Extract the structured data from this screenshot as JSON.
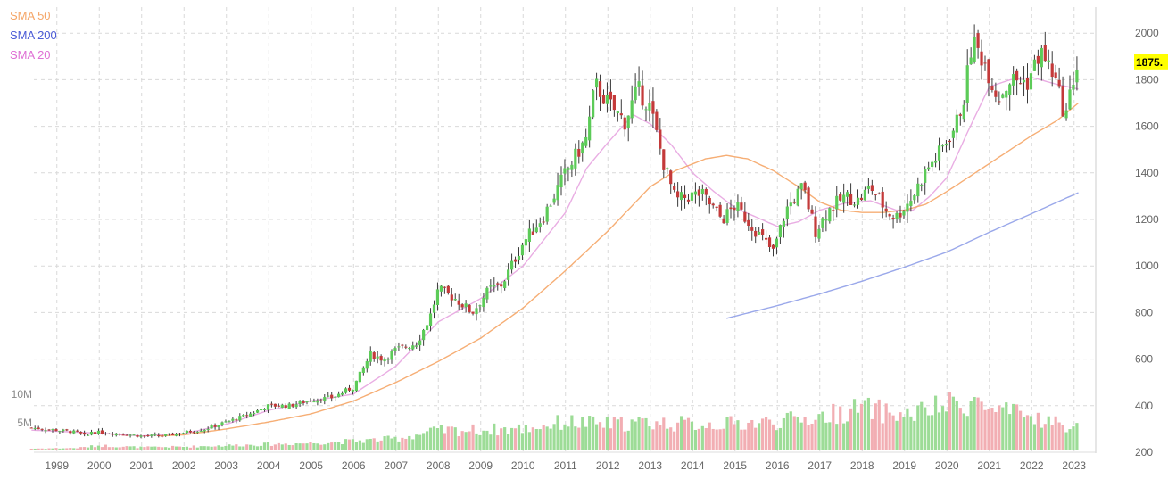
{
  "chart_data": {
    "type": "candlestick",
    "period": "monthly",
    "y_ticks": [
      200,
      400,
      600,
      800,
      1000,
      1200,
      1400,
      1600,
      1800,
      2000
    ],
    "x_ticks": [
      "1999",
      "2000",
      "2001",
      "2002",
      "2003",
      "2004",
      "2005",
      "2006",
      "2007",
      "2008",
      "2009",
      "2010",
      "2011",
      "2012",
      "2013",
      "2014",
      "2015",
      "2016",
      "2017",
      "2018",
      "2019",
      "2020",
      "2021",
      "2022",
      "2023"
    ],
    "volume_ticks": [
      "5M",
      "10M"
    ],
    "ylim": [
      200,
      2100
    ],
    "xlim_years": [
      1998.4,
      2023.2
    ],
    "grid": true,
    "legend_position": "top-left",
    "last_price_label": "1875.",
    "last_price_value": 1875,
    "colors": {
      "up": "#5ccb58",
      "down": "#c43a3a",
      "vol_up": "#9ddc97",
      "vol_down": "#f2aeb3",
      "sma50": "#f5a566",
      "sma200": "#8f9fe8",
      "sma20": "#e7a4e0",
      "last_label_bg": "#ffff00"
    },
    "close_anchors": [
      [
        1998.4,
        305
      ],
      [
        1999.0,
        295
      ],
      [
        1999.5,
        285
      ],
      [
        1999.7,
        265
      ],
      [
        1999.8,
        290
      ],
      [
        2000.0,
        285
      ],
      [
        2000.5,
        280
      ],
      [
        2001.0,
        270
      ],
      [
        2001.5,
        270
      ],
      [
        2002.0,
        285
      ],
      [
        2002.5,
        300
      ],
      [
        2003.0,
        330
      ],
      [
        2003.5,
        360
      ],
      [
        2004.0,
        400
      ],
      [
        2004.5,
        400
      ],
      [
        2005.0,
        425
      ],
      [
        2005.5,
        435
      ],
      [
        2006.0,
        480
      ],
      [
        2006.4,
        620
      ],
      [
        2006.7,
        600
      ],
      [
        2007.0,
        640
      ],
      [
        2007.5,
        670
      ],
      [
        2007.8,
        780
      ],
      [
        2008.0,
        900
      ],
      [
        2008.4,
        860
      ],
      [
        2008.8,
        800
      ],
      [
        2009.2,
        900
      ],
      [
        2009.5,
        920
      ],
      [
        2010.0,
        1100
      ],
      [
        2010.5,
        1220
      ],
      [
        2011.0,
        1400
      ],
      [
        2011.5,
        1550
      ],
      [
        2011.7,
        1780
      ],
      [
        2012.0,
        1700
      ],
      [
        2012.4,
        1620
      ],
      [
        2012.7,
        1760
      ],
      [
        2013.0,
        1680
      ],
      [
        2013.3,
        1450
      ],
      [
        2013.6,
        1280
      ],
      [
        2013.9,
        1300
      ],
      [
        2014.2,
        1310
      ],
      [
        2014.7,
        1200
      ],
      [
        2015.0,
        1260
      ],
      [
        2015.5,
        1150
      ],
      [
        2015.9,
        1060
      ],
      [
        2016.2,
        1240
      ],
      [
        2016.6,
        1340
      ],
      [
        2016.9,
        1150
      ],
      [
        2017.2,
        1240
      ],
      [
        2017.6,
        1300
      ],
      [
        2017.9,
        1280
      ],
      [
        2018.2,
        1340
      ],
      [
        2018.6,
        1230
      ],
      [
        2018.8,
        1210
      ],
      [
        2019.2,
        1300
      ],
      [
        2019.5,
        1410
      ],
      [
        2019.8,
        1480
      ],
      [
        2020.2,
        1600
      ],
      [
        2020.4,
        1720
      ],
      [
        2020.6,
        1970
      ],
      [
        2020.9,
        1870
      ],
      [
        2021.2,
        1720
      ],
      [
        2021.5,
        1800
      ],
      [
        2021.9,
        1790
      ],
      [
        2022.2,
        1920
      ],
      [
        2022.5,
        1830
      ],
      [
        2022.8,
        1640
      ],
      [
        2023.0,
        1820
      ],
      [
        2023.1,
        1875
      ]
    ],
    "volume_anchors": [
      [
        1998.4,
        0.3
      ],
      [
        1999.5,
        0.4
      ],
      [
        2000.0,
        0.8
      ],
      [
        2001.0,
        0.5
      ],
      [
        2002.0,
        0.6
      ],
      [
        2003.0,
        0.8
      ],
      [
        2004.0,
        1.0
      ],
      [
        2005.0,
        1.2
      ],
      [
        2006.0,
        1.5
      ],
      [
        2007.0,
        1.9
      ],
      [
        2008.0,
        3.2
      ],
      [
        2009.0,
        3.3
      ],
      [
        2010.0,
        3.5
      ],
      [
        2011.0,
        4.6
      ],
      [
        2012.0,
        4.2
      ],
      [
        2013.0,
        4.5
      ],
      [
        2014.0,
        4.2
      ],
      [
        2015.0,
        4.3
      ],
      [
        2016.0,
        4.6
      ],
      [
        2017.0,
        5.4
      ],
      [
        2018.0,
        6.8
      ],
      [
        2019.0,
        5.6
      ],
      [
        2020.0,
        7.2
      ],
      [
        2020.7,
        8.0
      ],
      [
        2021.0,
        6.4
      ],
      [
        2022.0,
        5.4
      ],
      [
        2023.0,
        3.6
      ]
    ],
    "sma50_anchors": [
      [
        2001.4,
        270
      ],
      [
        2002.0,
        275
      ],
      [
        2003.0,
        300
      ],
      [
        2004.0,
        330
      ],
      [
        2005.0,
        365
      ],
      [
        2006.0,
        420
      ],
      [
        2007.0,
        500
      ],
      [
        2008.0,
        590
      ],
      [
        2009.0,
        690
      ],
      [
        2010.0,
        820
      ],
      [
        2011.0,
        980
      ],
      [
        2012.0,
        1150
      ],
      [
        2013.0,
        1340
      ],
      [
        2013.6,
        1410
      ],
      [
        2014.3,
        1460
      ],
      [
        2014.8,
        1475
      ],
      [
        2015.3,
        1460
      ],
      [
        2015.9,
        1410
      ],
      [
        2016.5,
        1340
      ],
      [
        2017.0,
        1275
      ],
      [
        2017.5,
        1240
      ],
      [
        2018.0,
        1230
      ],
      [
        2018.5,
        1230
      ],
      [
        2019.0,
        1240
      ],
      [
        2019.5,
        1265
      ],
      [
        2020.0,
        1320
      ],
      [
        2021.0,
        1440
      ],
      [
        2022.0,
        1560
      ],
      [
        2022.6,
        1625
      ],
      [
        2023.1,
        1700
      ]
    ],
    "sma200_anchors": [
      [
        2014.8,
        775
      ],
      [
        2016.0,
        830
      ],
      [
        2017.0,
        880
      ],
      [
        2018.0,
        935
      ],
      [
        2019.0,
        995
      ],
      [
        2020.0,
        1060
      ],
      [
        2021.0,
        1145
      ],
      [
        2022.0,
        1225
      ],
      [
        2023.1,
        1315
      ]
    ],
    "sma20_anchors": [
      [
        1998.4,
        295
      ],
      [
        2000.0,
        282
      ],
      [
        2001.0,
        270
      ],
      [
        2002.0,
        280
      ],
      [
        2003.0,
        320
      ],
      [
        2004.0,
        380
      ],
      [
        2005.0,
        420
      ],
      [
        2006.0,
        450
      ],
      [
        2007.0,
        570
      ],
      [
        2008.0,
        760
      ],
      [
        2009.0,
        860
      ],
      [
        2010.0,
        1000
      ],
      [
        2011.0,
        1230
      ],
      [
        2011.5,
        1420
      ],
      [
        2012.0,
        1530
      ],
      [
        2012.6,
        1650
      ],
      [
        2013.0,
        1610
      ],
      [
        2013.5,
        1520
      ],
      [
        2014.0,
        1400
      ],
      [
        2014.5,
        1320
      ],
      [
        2015.0,
        1250
      ],
      [
        2015.5,
        1210
      ],
      [
        2016.0,
        1170
      ],
      [
        2016.5,
        1190
      ],
      [
        2017.0,
        1240
      ],
      [
        2017.6,
        1270
      ],
      [
        2018.2,
        1280
      ],
      [
        2018.8,
        1240
      ],
      [
        2019.2,
        1240
      ],
      [
        2019.6,
        1300
      ],
      [
        2020.0,
        1380
      ],
      [
        2020.5,
        1580
      ],
      [
        2021.0,
        1770
      ],
      [
        2021.5,
        1800
      ],
      [
        2022.0,
        1810
      ],
      [
        2022.6,
        1780
      ],
      [
        2023.1,
        1760
      ]
    ]
  },
  "legend": {
    "sma50": "SMA 50",
    "sma200": "SMA 200",
    "sma20": "SMA 20"
  }
}
